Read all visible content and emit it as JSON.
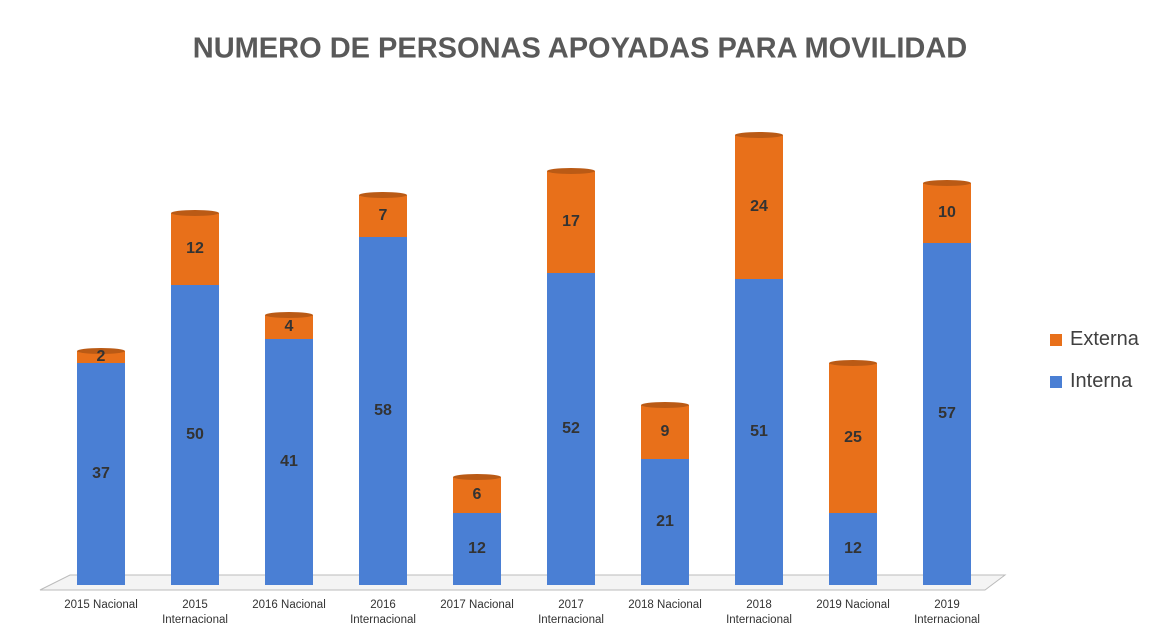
{
  "chart_data": {
    "type": "bar",
    "stacked": true,
    "title": "NUMERO DE PERSONAS APOYADAS PARA MOVILIDAD",
    "categories": [
      "2015 Nacional",
      "2015 Internacional",
      "2016 Nacional",
      "2016 Internacional",
      "2017 Nacional",
      "2017 Internacional",
      "2018 Nacional",
      "2018 Internacional",
      "2019 Nacional",
      "2019 Internacional"
    ],
    "series": [
      {
        "name": "Interna",
        "color": "#4a7fd4",
        "values": [
          37,
          50,
          41,
          58,
          12,
          52,
          21,
          51,
          12,
          57
        ]
      },
      {
        "name": "Externa",
        "color": "#e8701a",
        "values": [
          2,
          12,
          4,
          7,
          6,
          17,
          9,
          24,
          25,
          10
        ]
      }
    ],
    "legend": "right"
  }
}
